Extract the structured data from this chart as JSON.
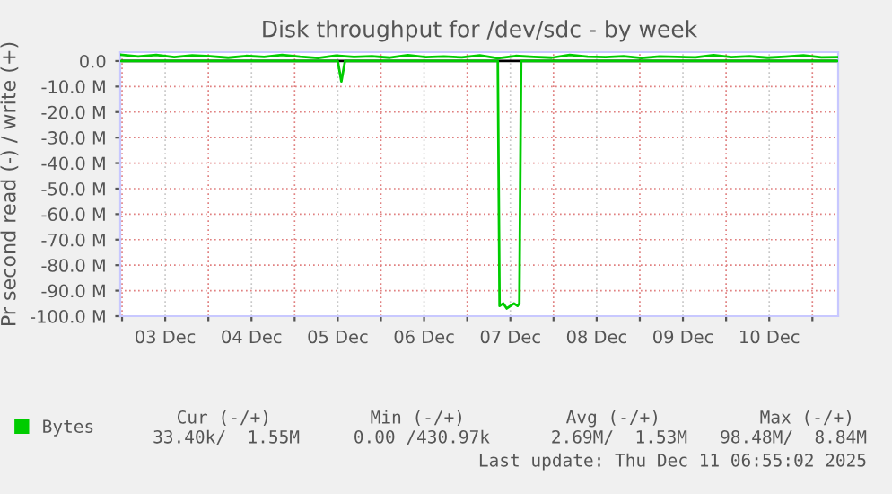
{
  "chart_data": {
    "type": "line",
    "title": "Disk throughput for /dev/sdc - by week",
    "ylabel": "Pr second read (-) / write (+)",
    "xlim": [
      "2025-12-02T23:30",
      "2025-12-11T07:10"
    ],
    "ylim": [
      -100,
      3.5
    ],
    "xticks": [
      {
        "value": "2025-12-03T00:00",
        "label": null
      },
      {
        "value": "2025-12-03T12:00",
        "label": "03 Dec"
      },
      {
        "value": "2025-12-04T00:00",
        "label": null
      },
      {
        "value": "2025-12-04T12:00",
        "label": "04 Dec"
      },
      {
        "value": "2025-12-05T00:00",
        "label": null
      },
      {
        "value": "2025-12-05T12:00",
        "label": "05 Dec"
      },
      {
        "value": "2025-12-06T00:00",
        "label": null
      },
      {
        "value": "2025-12-06T12:00",
        "label": "06 Dec"
      },
      {
        "value": "2025-12-07T00:00",
        "label": null
      },
      {
        "value": "2025-12-07T12:00",
        "label": "07 Dec"
      },
      {
        "value": "2025-12-08T00:00",
        "label": null
      },
      {
        "value": "2025-12-08T12:00",
        "label": "08 Dec"
      },
      {
        "value": "2025-12-09T00:00",
        "label": null
      },
      {
        "value": "2025-12-09T12:00",
        "label": "09 Dec"
      },
      {
        "value": "2025-12-10T00:00",
        "label": null
      },
      {
        "value": "2025-12-10T12:00",
        "label": "10 Dec"
      },
      {
        "value": "2025-12-11T00:00",
        "label": null
      }
    ],
    "yticks": [
      {
        "value": 0,
        "label": "0.0"
      },
      {
        "value": -10,
        "label": "-10.0 M"
      },
      {
        "value": -20,
        "label": "-20.0 M"
      },
      {
        "value": -30,
        "label": "-30.0 M"
      },
      {
        "value": -40,
        "label": "-40.0 M"
      },
      {
        "value": -50,
        "label": "-50.0 M"
      },
      {
        "value": -60,
        "label": "-60.0 M"
      },
      {
        "value": -70,
        "label": "-70.0 M"
      },
      {
        "value": -80,
        "label": "-80.0 M"
      },
      {
        "value": -90,
        "label": "-90.0 M"
      },
      {
        "value": -100,
        "label": "-100.0 M"
      }
    ],
    "grid": true,
    "legend": "bottom left",
    "marker": "none",
    "line_style": "solid",
    "series": [
      {
        "name": "Bytes",
        "color": "#00cc00",
        "x": [
          "2025-12-02T23:30",
          "2025-12-03T04:30",
          "2025-12-03T09:30",
          "2025-12-03T14:30",
          "2025-12-03T19:30",
          "2025-12-04T00:30",
          "2025-12-04T05:30",
          "2025-12-04T10:30",
          "2025-12-04T15:30",
          "2025-12-04T20:30",
          "2025-12-05T01:30",
          "2025-12-05T06:30",
          "2025-12-05T11:30",
          "2025-12-05T16:30",
          "2025-12-05T21:30",
          "2025-12-06T02:30",
          "2025-12-06T07:30",
          "2025-12-06T12:30",
          "2025-12-06T17:30",
          "2025-12-06T22:30",
          "2025-12-07T03:30",
          "2025-12-07T08:30",
          "2025-12-07T13:30",
          "2025-12-07T18:30",
          "2025-12-07T23:30",
          "2025-12-08T04:30",
          "2025-12-08T09:30",
          "2025-12-08T14:30",
          "2025-12-08T19:30",
          "2025-12-09T00:30",
          "2025-12-09T05:30",
          "2025-12-09T10:30",
          "2025-12-09T15:30",
          "2025-12-09T20:30",
          "2025-12-10T01:30",
          "2025-12-10T06:30",
          "2025-12-10T11:30",
          "2025-12-10T16:30",
          "2025-12-10T21:30",
          "2025-12-11T02:30",
          "2025-12-11T06:55"
        ],
        "values": [
          2.5,
          1.8,
          2.4,
          1.5,
          2.2,
          1.9,
          1.3,
          2.0,
          1.6,
          2.4,
          1.7,
          1.2,
          2.1,
          1.6,
          1.9,
          1.3,
          2.3,
          1.5,
          1.8,
          1.4,
          2.2,
          1.1,
          2.0,
          1.6,
          1.3,
          2.4,
          1.7,
          1.5,
          1.9,
          1.2,
          1.8,
          1.6,
          1.4,
          2.3,
          1.5,
          1.9,
          1.3,
          1.7,
          2.2,
          1.4,
          1.5
        ]
      },
      {
        "color": "#00cc00",
        "x": [
          "2025-12-02T23:30",
          "2025-12-05T12:00",
          "2025-12-05T13:00",
          "2025-12-05T14:00",
          "2025-12-07T08:30",
          "2025-12-07T09:00",
          "2025-12-07T10:00",
          "2025-12-07T11:00",
          "2025-12-07T12:00",
          "2025-12-07T13:00",
          "2025-12-07T14:00",
          "2025-12-07T14:30",
          "2025-12-07T15:00",
          "2025-12-11T06:55"
        ],
        "values": [
          0,
          0,
          -8,
          0,
          0,
          -96,
          -95,
          -97,
          -96,
          -95,
          -96,
          -95,
          0,
          0
        ]
      }
    ],
    "annotations": [
      "Cur (-/+)",
      "Min (-/+)",
      "Avg (-/+)",
      "Max (-/+)",
      "33.40k/  1.55M",
      "0.00 /430.97k",
      "2.69M/  1.53M",
      "98.48M/  8.84M",
      "Last update: Thu Dec 11 06:55:02 2025"
    ]
  }
}
